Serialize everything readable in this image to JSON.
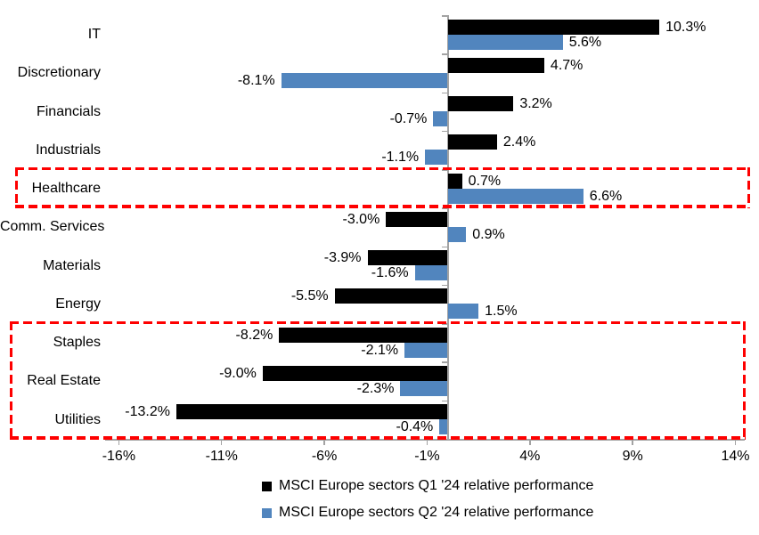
{
  "chart_data": {
    "type": "bar",
    "orientation": "horizontal",
    "categories": [
      "IT",
      "Discretionary",
      "Financials",
      "Industrials",
      "Healthcare",
      "Comm. Services",
      "Materials",
      "Energy",
      "Staples",
      "Real Estate",
      "Utilities"
    ],
    "series": [
      {
        "name": "MSCI Europe sectors Q1 '24 relative performance",
        "color": "#000000",
        "values": [
          10.3,
          4.7,
          3.2,
          2.4,
          0.7,
          -3.0,
          -3.9,
          -5.5,
          -8.2,
          -9.0,
          -13.2
        ],
        "labels": [
          "10.3%",
          "4.7%",
          "3.2%",
          "2.4%",
          "0.7%",
          "-3.0%",
          "-3.9%",
          "-5.5%",
          "-8.2%",
          "-9.0%",
          "-13.2%"
        ]
      },
      {
        "name": "MSCI Europe sectors Q2 '24 relative performance",
        "color": "#5185BE",
        "values": [
          5.6,
          -8.1,
          -0.7,
          -1.1,
          6.6,
          0.9,
          -1.6,
          1.5,
          -2.1,
          -2.3,
          -0.4
        ],
        "labels": [
          "5.6%",
          "-8.1%",
          "-0.7%",
          "-1.1%",
          "6.6%",
          "0.9%",
          "-1.6%",
          "1.5%",
          "-2.1%",
          "-2.3%",
          "-0.4%"
        ]
      }
    ],
    "x_axis": {
      "unit": "%",
      "tick_labels": [
        "-16%",
        "-11%",
        "-6%",
        "-1%",
        "4%",
        "9%",
        "14%"
      ],
      "tick_values": [
        -16,
        -11,
        -6,
        -1,
        4,
        9,
        14
      ],
      "min": -16.6,
      "max": 14.5
    },
    "grid": false,
    "legend_position": "bottom",
    "axis_color": "#A3A3A3",
    "text_color": "#000000",
    "annotations": {
      "highlight_boxes": [
        {
          "categories": [
            "Healthcare"
          ],
          "color": "#FE0000",
          "style": "dashed"
        },
        {
          "categories": [
            "Staples",
            "Real Estate",
            "Utilities"
          ],
          "color": "#FE0000",
          "style": "dashed"
        }
      ]
    }
  }
}
